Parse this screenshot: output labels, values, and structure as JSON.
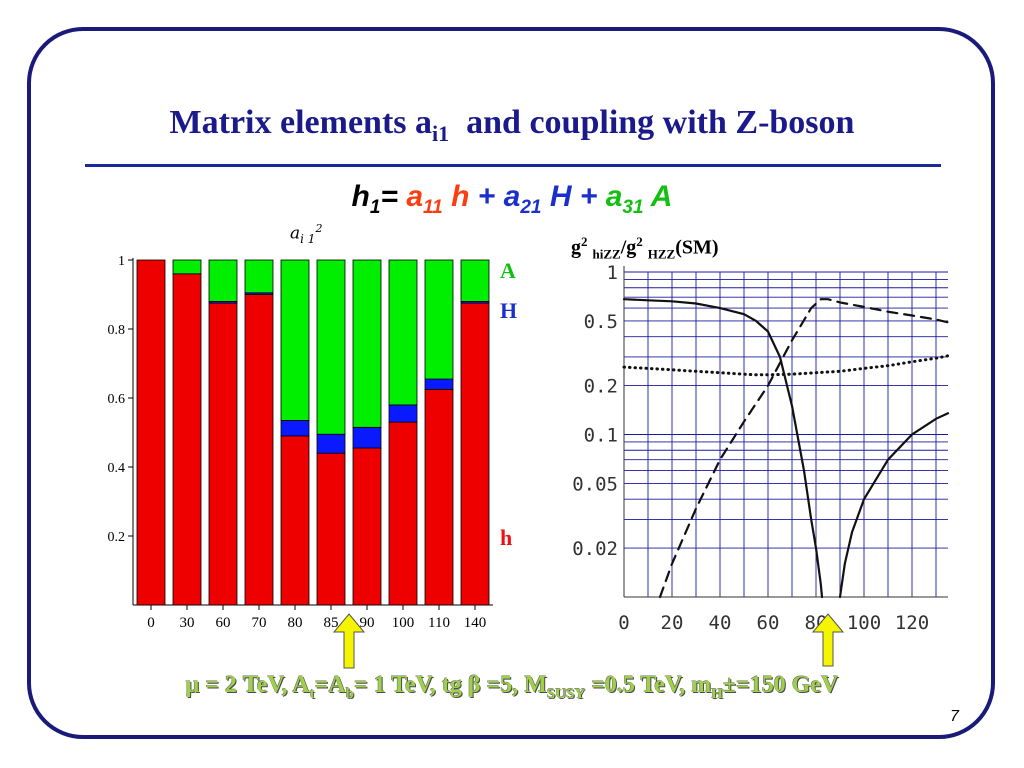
{
  "title": {
    "main": "Matrix elements a",
    "sub": "i1",
    "rest": "  and coupling with Z-boson"
  },
  "formula": {
    "lhs": "h",
    "lhs_sub": "1",
    "eq": "=",
    "t1_coef": "a",
    "t1_sub": "11",
    "t1_var": "h",
    "plus1": "+",
    "t2_coef": "a",
    "t2_sub": "21",
    "t2_var": "H",
    "plus2": "+",
    "t3_coef": "a",
    "t3_sub": "31",
    "t3_var": "A"
  },
  "colors": {
    "h": "#ee0000",
    "H": "#0a1aff",
    "A": "#00ee00",
    "title": "#1a1a8a",
    "frame": "#1a1a7a",
    "params": "#9fd04a",
    "arrow": "#f5f500"
  },
  "left_chart": {
    "ylabel_main": "a",
    "ylabel_sub": "i 1",
    "ylabel_sup": "2",
    "legend": {
      "A": "A",
      "H": "H",
      "h": "h"
    }
  },
  "right_chart": {
    "ylabel": {
      "a": "g",
      "a_sup": "2",
      "a_sub": "hiZZ",
      "slash": "/g",
      "b_sup": "2",
      "b_sub": "HZZ",
      "tail": "(SM)"
    }
  },
  "chart_data": [
    {
      "type": "bar",
      "stacked": true,
      "categories": [
        "0",
        "30",
        "60",
        "70",
        "80",
        "85",
        "90",
        "100",
        "110",
        "140"
      ],
      "series": [
        {
          "name": "h",
          "values": [
            1.0,
            0.96,
            0.875,
            0.9,
            0.49,
            0.44,
            0.455,
            0.53,
            0.625,
            0.875
          ]
        },
        {
          "name": "H",
          "values": [
            0.0,
            0.0,
            0.005,
            0.005,
            0.045,
            0.055,
            0.06,
            0.05,
            0.03,
            0.005
          ]
        },
        {
          "name": "A",
          "values": [
            0.0,
            0.04,
            0.12,
            0.095,
            0.465,
            0.505,
            0.485,
            0.42,
            0.345,
            0.12
          ]
        }
      ],
      "yticks": [
        "0.2",
        "0.4",
        "0.6",
        "0.8",
        "1"
      ],
      "ylim": [
        0,
        1
      ],
      "legend_position": "right"
    },
    {
      "type": "line",
      "yscale": "log",
      "xlim": [
        0,
        135
      ],
      "ylim": [
        0.01,
        1
      ],
      "xticks": [
        "0",
        "20",
        "40",
        "60",
        "80",
        "100",
        "120"
      ],
      "yticks": [
        {
          "label": "1",
          "value": 1
        },
        {
          "label": "0.5",
          "value": 0.5
        },
        {
          "label": "0.2",
          "value": 0.2
        },
        {
          "label": "0.1",
          "value": 0.1
        },
        {
          "label": "0.05",
          "value": 0.05
        },
        {
          "label": "0.02",
          "value": 0.02
        }
      ],
      "grid": true,
      "series": [
        {
          "style": "solid",
          "x": [
            0,
            10,
            20,
            30,
            40,
            50,
            55,
            60,
            65,
            70,
            75,
            78,
            80,
            82,
            82.5
          ],
          "y": [
            0.68,
            0.67,
            0.66,
            0.64,
            0.6,
            0.55,
            0.5,
            0.43,
            0.3,
            0.15,
            0.06,
            0.03,
            0.02,
            0.012,
            0.01
          ]
        },
        {
          "style": "solid",
          "x": [
            90,
            92,
            95,
            100,
            110,
            120,
            130,
            135
          ],
          "y": [
            0.01,
            0.016,
            0.025,
            0.04,
            0.07,
            0.1,
            0.125,
            0.135
          ]
        },
        {
          "style": "dashed",
          "x": [
            15,
            20,
            30,
            40,
            50,
            60,
            70,
            78,
            82,
            85,
            90,
            100,
            110,
            120,
            130,
            135
          ],
          "y": [
            0.01,
            0.016,
            0.035,
            0.07,
            0.12,
            0.2,
            0.38,
            0.6,
            0.68,
            0.68,
            0.65,
            0.61,
            0.57,
            0.54,
            0.51,
            0.49
          ]
        },
        {
          "style": "dotted",
          "x": [
            0,
            10,
            20,
            30,
            40,
            50,
            55,
            60,
            70,
            80,
            90,
            100,
            110,
            120,
            130,
            135
          ],
          "y": [
            0.26,
            0.255,
            0.25,
            0.245,
            0.24,
            0.235,
            0.233,
            0.233,
            0.235,
            0.24,
            0.245,
            0.255,
            0.265,
            0.28,
            0.295,
            0.305
          ]
        }
      ]
    }
  ],
  "params": {
    "p1": "μ = 2 TeV, A",
    "p1_sub": "t",
    "p2": "=A",
    "p2_sub": "b",
    "p3": "= 1 TeV, tg β =5, M",
    "p3_sub": "SUSY",
    "p4": " =0.5 TeV, m",
    "p4_sub": "H",
    "p5": "±=150 GeV"
  },
  "page_number": "7"
}
